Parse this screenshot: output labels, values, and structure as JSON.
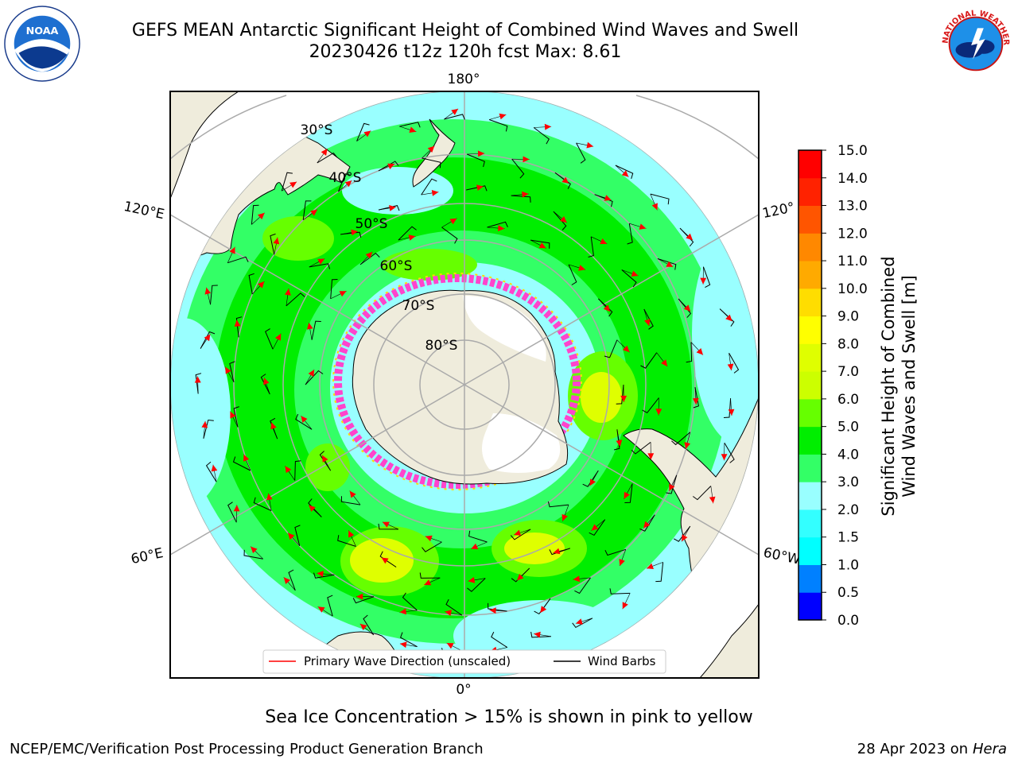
{
  "header": {
    "title_line1": "GEFS MEAN Antarctic Significant Height of Combined Wind Waves and Swell",
    "title_line2": "20230426 t12z 120h fcst   Max: 8.61"
  },
  "map": {
    "longitude_labels": [
      "180°",
      "120°E",
      "120°",
      "60°E",
      "60°W",
      "0°"
    ],
    "latitude_labels": [
      "30°S",
      "40°S",
      "50°S",
      "60°S",
      "70°S",
      "80°S"
    ],
    "legend": {
      "wave_label": "Primary Wave Direction (unscaled)",
      "barb_label": "Wind Barbs",
      "wave_color": "#ff0000",
      "barb_color": "#000000"
    },
    "colors": {
      "land": "#efecdc",
      "ocean_low": "#99ffff",
      "ocean_mid": "#33ff66",
      "ocean_green": "#00ee00",
      "ice_pink": "#ff44cc",
      "arrow": "#ff0000"
    }
  },
  "colorbar": {
    "label_line1": "Significant Height of Combined",
    "label_line2": "Wind Waves and Swell [m]",
    "ticks": [
      "0.0",
      "0.5",
      "1.0",
      "1.5",
      "2.0",
      "3.0",
      "4.0",
      "5.0",
      "6.0",
      "7.0",
      "8.0",
      "9.0",
      "10.0",
      "11.0",
      "12.0",
      "13.0",
      "14.0",
      "15.0"
    ],
    "colors": [
      "#0000ff",
      "#0080ff",
      "#00ffff",
      "#33ffff",
      "#99ffff",
      "#33ff66",
      "#00ee00",
      "#66ff00",
      "#ccff00",
      "#dfff00",
      "#ffff00",
      "#ffdd00",
      "#ffaa00",
      "#ff8800",
      "#ff5500",
      "#ff2200",
      "#ff0000"
    ]
  },
  "caption": "Sea Ice Concentration > 15% is shown in pink to yellow",
  "footer": {
    "left": "NCEP/EMC/Verification Post Processing Product Generation Branch",
    "date": "28 Apr 2023 on ",
    "machine": "Hera"
  },
  "logos": {
    "noaa_text": "NOAA",
    "nws_text": "NATIONAL WEATHER SERVICE"
  }
}
